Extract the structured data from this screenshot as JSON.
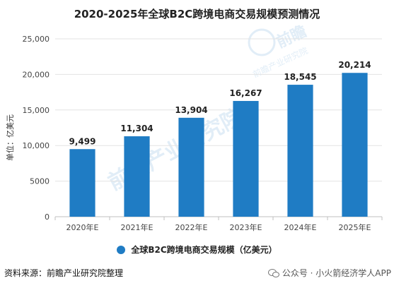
{
  "chart_data": {
    "type": "bar",
    "title": "2020-2025年全球B2C跨境电商交易规模预测情况",
    "ylabel": "单位：亿美元",
    "xlabel": "",
    "categories": [
      "2020年E",
      "2021年E",
      "2022年E",
      "2023年E",
      "2024年E",
      "2025年E"
    ],
    "series": [
      {
        "name": "全球B2C跨境电商交易规模（亿美元）",
        "values": [
          9499,
          11304,
          13904,
          16267,
          18545,
          20214
        ]
      }
    ],
    "data_labels": [
      "9,499",
      "11,304",
      "13,904",
      "16,267",
      "18,545",
      "20,214"
    ],
    "ylim": [
      0,
      25000
    ],
    "yticks": [
      0,
      5000,
      10000,
      15000,
      20000,
      25000
    ],
    "ytick_labels": [
      "0",
      "5000",
      "10,000",
      "15,000",
      "20,000",
      "25,000"
    ],
    "grid": true,
    "legend_position": "bottom",
    "bar_color": "#1f7cc4"
  },
  "source_note": "资料来源：前瞻产业研究院整理",
  "wechat_note": "公众号 · 小火箭经济学人APP",
  "watermark": {
    "logo_text": "前瞻",
    "main_text": "前瞻产业研究院",
    "sub_text": "前瞻产业研究院"
  }
}
